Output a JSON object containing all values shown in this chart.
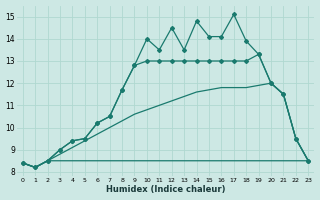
{
  "xlabel": "Humidex (Indice chaleur)",
  "bg_color": "#cde8e4",
  "grid_color": "#b0d8d0",
  "line_color": "#1a7a6e",
  "x_ticks": [
    0,
    1,
    2,
    3,
    4,
    5,
    6,
    7,
    8,
    9,
    10,
    11,
    12,
    13,
    14,
    15,
    16,
    17,
    18,
    19,
    20,
    21,
    22,
    23
  ],
  "y_ticks": [
    8,
    9,
    10,
    11,
    12,
    13,
    14,
    15
  ],
  "xlim": [
    -0.5,
    23.5
  ],
  "ylim": [
    7.8,
    15.5
  ],
  "line1_x": [
    0,
    1,
    2,
    3,
    4,
    5,
    6,
    7,
    8,
    9,
    10,
    11,
    12,
    13,
    14,
    15,
    16,
    17,
    18,
    19,
    20,
    21,
    22,
    23
  ],
  "line1_y": [
    8.4,
    8.2,
    8.5,
    8.5,
    8.5,
    8.5,
    8.5,
    8.5,
    8.5,
    8.5,
    8.5,
    8.5,
    8.5,
    8.5,
    8.5,
    8.5,
    8.5,
    8.5,
    8.5,
    8.5,
    8.5,
    8.5,
    8.5,
    8.5
  ],
  "line2_x": [
    0,
    1,
    2,
    3,
    4,
    5,
    6,
    7,
    8,
    9,
    10,
    11,
    12,
    13,
    14,
    15,
    16,
    17,
    18,
    19,
    20,
    21,
    22,
    23
  ],
  "line2_y": [
    8.4,
    8.2,
    8.5,
    8.8,
    9.1,
    9.4,
    9.7,
    10.0,
    10.3,
    10.6,
    10.8,
    11.0,
    11.2,
    11.4,
    11.6,
    11.7,
    11.8,
    11.8,
    11.8,
    11.9,
    12.0,
    11.5,
    9.5,
    8.5
  ],
  "line3_x": [
    0,
    1,
    2,
    3,
    4,
    5,
    6,
    7,
    8,
    9,
    10,
    11,
    12,
    13,
    14,
    15,
    16,
    17,
    18,
    19,
    20,
    21,
    22,
    23
  ],
  "line3_y": [
    8.4,
    8.2,
    8.5,
    9.0,
    9.4,
    9.5,
    10.2,
    10.5,
    11.7,
    12.8,
    13.0,
    13.0,
    13.0,
    13.0,
    13.0,
    13.0,
    13.0,
    13.0,
    13.0,
    13.3,
    12.0,
    11.5,
    9.5,
    8.5
  ],
  "line4_x": [
    0,
    1,
    2,
    3,
    4,
    5,
    6,
    7,
    8,
    9,
    10,
    11,
    12,
    13,
    14,
    15,
    16,
    17,
    18,
    19,
    20,
    21,
    22,
    23
  ],
  "line4_y": [
    8.4,
    8.2,
    8.5,
    9.0,
    9.4,
    9.5,
    10.2,
    10.5,
    11.7,
    12.8,
    14.0,
    13.5,
    14.5,
    13.5,
    14.8,
    14.1,
    14.1,
    15.1,
    13.9,
    13.3,
    12.0,
    11.5,
    9.5,
    8.5
  ]
}
